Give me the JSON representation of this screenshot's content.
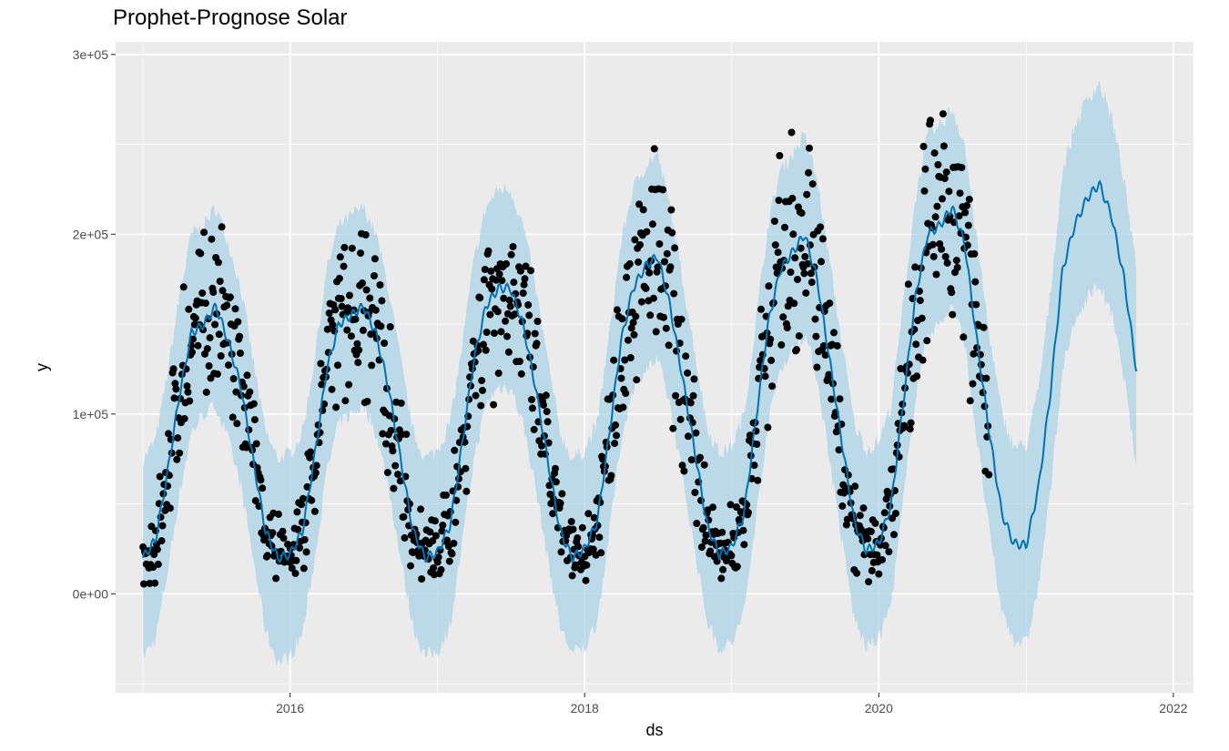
{
  "chart_data": {
    "type": "scatter",
    "title": "Prophet-Prognose Solar",
    "xlabel": "ds",
    "ylabel": "y",
    "x_ticks": [
      "2016",
      "2018",
      "2020",
      "2022"
    ],
    "y_ticks": [
      "0e+00",
      "1e+05",
      "2e+05",
      "3e+05"
    ],
    "xlim": [
      "2014-10-25",
      "2022-02-20"
    ],
    "ylim": [
      -55000,
      307000
    ],
    "grid": true,
    "legend": "none",
    "colors": {
      "panel": "#ebebeb",
      "grid": "#ffffff",
      "points": "#000000",
      "forecast_line": "#0072b2",
      "interval": "#a8d1e7"
    },
    "forecast_line": {
      "name": "yhat",
      "x": [
        "2015-01-01",
        "2015-02-01",
        "2015-03-01",
        "2015-04-01",
        "2015-05-01",
        "2015-06-01",
        "2015-07-01",
        "2015-08-01",
        "2015-09-01",
        "2015-10-01",
        "2015-11-01",
        "2015-12-01",
        "2016-01-01",
        "2016-02-01",
        "2016-03-01",
        "2016-04-01",
        "2016-05-01",
        "2016-06-01",
        "2016-07-01",
        "2016-08-01",
        "2016-09-01",
        "2016-10-01",
        "2016-11-01",
        "2016-12-01",
        "2017-01-01",
        "2017-02-01",
        "2017-03-01",
        "2017-04-01",
        "2017-05-01",
        "2017-06-01",
        "2017-07-01",
        "2017-08-01",
        "2017-09-01",
        "2017-10-01",
        "2017-11-01",
        "2017-12-01",
        "2018-01-01",
        "2018-02-01",
        "2018-03-01",
        "2018-04-01",
        "2018-05-01",
        "2018-06-01",
        "2018-07-01",
        "2018-08-01",
        "2018-09-01",
        "2018-10-01",
        "2018-11-01",
        "2018-12-01",
        "2019-01-01",
        "2019-02-01",
        "2019-03-01",
        "2019-04-01",
        "2019-05-01",
        "2019-06-01",
        "2019-07-01",
        "2019-08-01",
        "2019-09-01",
        "2019-10-01",
        "2019-11-01",
        "2019-12-01",
        "2020-01-01",
        "2020-02-01",
        "2020-03-01",
        "2020-04-01",
        "2020-05-01",
        "2020-06-01",
        "2020-07-01",
        "2020-08-01",
        "2020-09-01",
        "2020-10-01",
        "2020-11-01",
        "2020-12-01",
        "2021-01-01",
        "2021-02-01",
        "2021-03-01",
        "2021-04-01",
        "2021-05-01",
        "2021-06-01",
        "2021-07-01",
        "2021-08-01",
        "2021-09-01",
        "2021-10-01"
      ],
      "y": [
        20000,
        30000,
        65000,
        110000,
        145000,
        150000,
        160000,
        140000,
        115000,
        75000,
        35000,
        20000,
        22000,
        35000,
        75000,
        125000,
        150000,
        155000,
        160000,
        145000,
        115000,
        75000,
        35000,
        20000,
        23000,
        38000,
        80000,
        130000,
        160000,
        170000,
        170000,
        150000,
        115000,
        75000,
        35000,
        20000,
        25000,
        40000,
        85000,
        140000,
        170000,
        182000,
        188000,
        160000,
        120000,
        80000,
        38000,
        22000,
        26000,
        45000,
        95000,
        150000,
        180000,
        190000,
        200000,
        175000,
        130000,
        85000,
        40000,
        24000,
        28000,
        50000,
        105000,
        165000,
        200000,
        205000,
        215000,
        195000,
        140000,
        90000,
        45000,
        28000,
        27000,
        60000,
        110000,
        180000,
        205000,
        220000,
        228000,
        210000,
        175000,
        125000
      ],
      "lower": [
        -35000,
        -25000,
        10000,
        55000,
        90000,
        100000,
        105000,
        85000,
        60000,
        20000,
        -20000,
        -38000,
        -35000,
        -22000,
        18000,
        68000,
        95000,
        100000,
        105000,
        90000,
        60000,
        20000,
        -18000,
        -35000,
        -32000,
        -18000,
        25000,
        75000,
        105000,
        115000,
        115000,
        95000,
        60000,
        20000,
        -18000,
        -33000,
        -30000,
        -15000,
        30000,
        85000,
        115000,
        125000,
        130000,
        105000,
        65000,
        25000,
        -15000,
        -30000,
        -28000,
        -10000,
        40000,
        95000,
        125000,
        135000,
        145000,
        120000,
        75000,
        30000,
        -14000,
        -30000,
        -25000,
        -5000,
        50000,
        110000,
        145000,
        150000,
        160000,
        140000,
        85000,
        35000,
        -10000,
        -25000,
        -28000,
        5000,
        55000,
        125000,
        150000,
        165000,
        172000,
        155000,
        120000,
        70000
      ],
      "upper": [
        75000,
        85000,
        120000,
        165000,
        200000,
        205000,
        215000,
        195000,
        170000,
        130000,
        90000,
        75000,
        78000,
        90000,
        130000,
        180000,
        205000,
        210000,
        215000,
        200000,
        170000,
        130000,
        90000,
        75000,
        80000,
        95000,
        135000,
        185000,
        215000,
        225000,
        225000,
        205000,
        170000,
        130000,
        90000,
        75000,
        80000,
        95000,
        140000,
        195000,
        225000,
        238000,
        245000,
        215000,
        175000,
        135000,
        93000,
        78000,
        82000,
        100000,
        150000,
        205000,
        235000,
        245000,
        255000,
        230000,
        185000,
        140000,
        95000,
        80000,
        85000,
        105000,
        160000,
        220000,
        255000,
        260000,
        270000,
        250000,
        195000,
        145000,
        100000,
        82000,
        82000,
        115000,
        165000,
        235000,
        260000,
        275000,
        284000,
        265000,
        230000,
        180000
      ]
    },
    "observed_points": {
      "name": "y",
      "start": "2015-01-01",
      "end": "2020-09-30",
      "count": 1000
    }
  }
}
